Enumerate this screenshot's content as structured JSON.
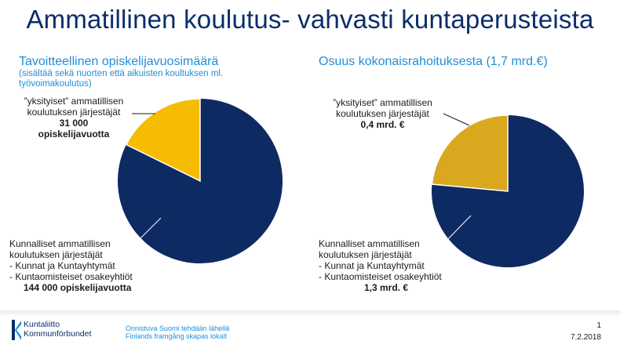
{
  "title": "Ammatillinen koulutus- vahvasti kuntaperusteista",
  "chart_data": [
    {
      "type": "pie",
      "title": "Tavoitteellinen opiskelijavuosimäärä",
      "note": [
        "(sisältää sekä nuorten että aikuisten koultuksen ml.",
        "työvoimakoulutus)"
      ],
      "slices": [
        {
          "name": "Kunnalliset",
          "value": 144000,
          "color": "#0e2a63"
        },
        {
          "name": "yksityiset",
          "value": 31000,
          "color": "#f6bc02"
        }
      ],
      "labels": {
        "private": {
          "lines": [
            "”yksityiset” ammatillisen",
            "koulutuksen järjestäjät"
          ],
          "value_lines": [
            "31 000",
            "opiskelijavuotta"
          ]
        },
        "public": {
          "lines": [
            "Kunnalliset  ammatillisen",
            "koulutuksen järjestäjät",
            "-   Kunnat ja Kuntayhtymät",
            "-   Kuntaomisteiset osakeyhtiöt"
          ],
          "value_lines": [
            "144 000 opiskelijavuotta"
          ]
        }
      }
    },
    {
      "type": "pie",
      "title": "Osuus kokonaisrahoituksesta (1,7 mrd.€)",
      "slices": [
        {
          "name": "Kunnalliset",
          "value": 1.3,
          "color": "#0e2a63"
        },
        {
          "name": "yksityiset",
          "value": 0.4,
          "color": "#d9a81f"
        }
      ],
      "labels": {
        "private": {
          "lines": [
            "”yksityiset” ammatillisen",
            "koulutuksen järjestäjät"
          ],
          "value_lines": [
            "0,4 mrd. €"
          ]
        },
        "public": {
          "lines": [
            "Kunnalliset  ammatillisen",
            "koulutuksen järjestäjät",
            "-   Kunnat ja Kuntayhtymät",
            "-   Kuntaomisteiset osakeyhtiöt"
          ],
          "value_lines": [
            "1,3 mrd. €"
          ]
        }
      }
    }
  ],
  "footer": {
    "logo_lines": [
      "Kuntaliitto",
      "Kommunförbundet"
    ],
    "slogan_lines": [
      "Onnistuva Suomi tehdään lähellä",
      "Finlands framgång skapas lokalt"
    ],
    "page_number": "1",
    "date": "7.2.2018"
  }
}
